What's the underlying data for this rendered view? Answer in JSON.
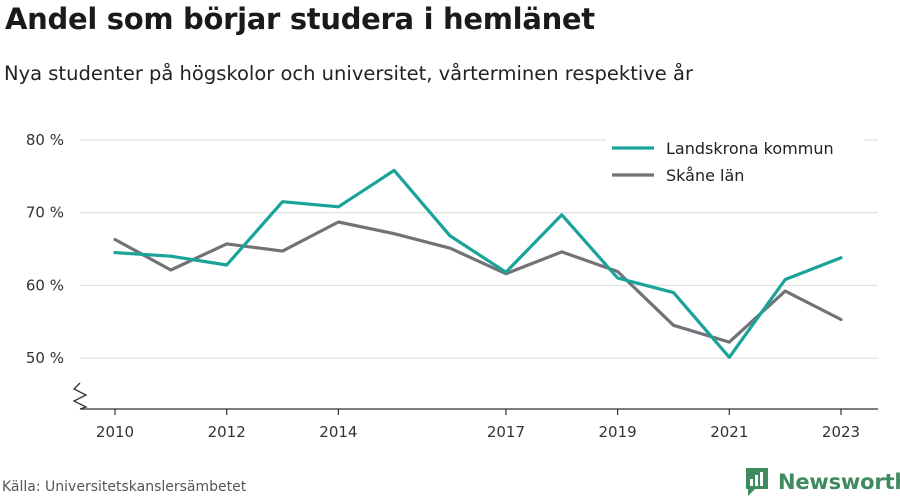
{
  "header": {
    "title": "Andel som börjar studera i hemlänet",
    "subtitle": "Nya studenter på högskolor och universitet, vårterminen respektive år"
  },
  "footer": {
    "source": "Källa: Universitetskanslersämbetet",
    "brand": "Newsworthy",
    "brand_icon": "newsworthy-logo-icon"
  },
  "chart_data": {
    "type": "line",
    "title": "Andel som börjar studera i hemlänet",
    "subtitle": "Nya studenter på högskolor och universitet, vårterminen respektive år",
    "x": [
      2010,
      2011,
      2012,
      2013,
      2014,
      2015,
      2016,
      2017,
      2018,
      2019,
      2020,
      2021,
      2022,
      2023
    ],
    "x_ticks": [
      2010,
      2012,
      2014,
      2017,
      2019,
      2021,
      2023
    ],
    "y_ticks": [
      50,
      60,
      70,
      80
    ],
    "y_tick_labels": [
      "50 %",
      "60 %",
      "70 %",
      "80 %"
    ],
    "ylim": [
      43,
      83
    ],
    "y_axis_break": true,
    "grid": "horizontal",
    "legend_position": "top-right",
    "series": [
      {
        "name": "Landskrona kommun",
        "color": "#1aa398",
        "values": [
          64.5,
          64.0,
          62.8,
          71.5,
          70.8,
          75.8,
          66.8,
          61.8,
          69.7,
          61.0,
          59.0,
          50.1,
          60.8,
          63.8
        ]
      },
      {
        "name": "Skåne län",
        "color": "#737278",
        "values": [
          66.3,
          62.1,
          65.7,
          64.7,
          68.7,
          67.1,
          65.1,
          61.6,
          64.6,
          61.9,
          54.5,
          52.2,
          59.2,
          55.3
        ]
      }
    ]
  }
}
